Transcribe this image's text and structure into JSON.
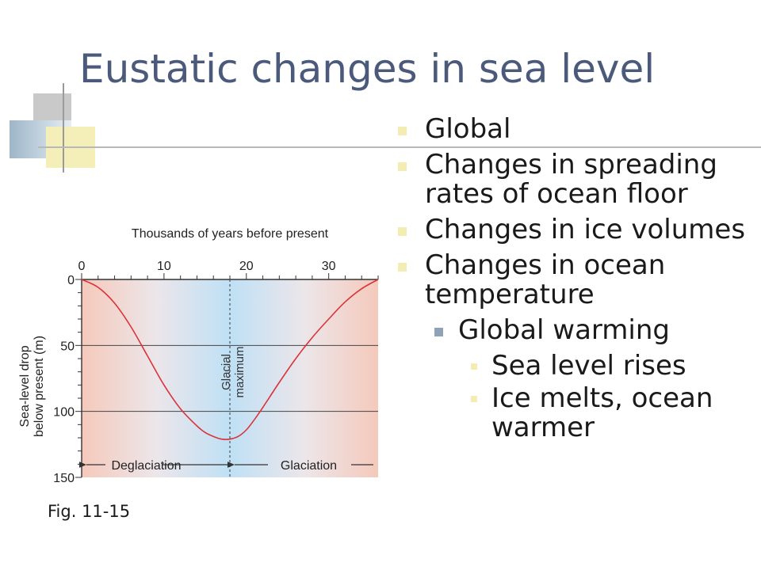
{
  "slide": {
    "title": "Eustatic changes in sea level",
    "bullets": [
      {
        "level": 1,
        "text": "Global"
      },
      {
        "level": 1,
        "text": "Changes in spreading rates of ocean floor"
      },
      {
        "level": 1,
        "text": "Changes in ice volumes"
      },
      {
        "level": 1,
        "text": "Changes in ocean temperature"
      },
      {
        "level": 2,
        "text": "Global warming"
      },
      {
        "level": 3,
        "text": "Sea level rises"
      },
      {
        "level": 3,
        "text": "Ice melts, ocean warmer"
      }
    ],
    "caption": "Fig. 11-15"
  },
  "chart_data": {
    "type": "line",
    "title": "Thousands of years before present",
    "xlabel": "",
    "ylabel_lines": [
      "Sea-level drop",
      "below present (m)"
    ],
    "xlim": [
      0,
      36
    ],
    "ylim": [
      0,
      150
    ],
    "y_inverted": true,
    "x_ticks": [
      0,
      10,
      20,
      30
    ],
    "y_ticks": [
      0,
      50,
      100,
      150
    ],
    "grid_y": [
      50,
      100
    ],
    "series": [
      {
        "color": "#d9343a",
        "x": [
          0,
          2,
          4,
          6,
          8,
          10,
          12,
          14,
          15,
          16,
          17,
          18,
          19,
          20,
          21,
          22,
          24,
          26,
          28,
          30,
          32,
          34,
          36
        ],
        "y": [
          0,
          6,
          18,
          36,
          58,
          80,
          98,
          111,
          116,
          119,
          121,
          121,
          119,
          114,
          106,
          97,
          78,
          60,
          44,
          30,
          17,
          7,
          0
        ]
      }
    ],
    "glacial_maximum_x": 18,
    "marker_label_lines": [
      "Glacial",
      "maximum"
    ],
    "bottom_labels": {
      "left": "Deglaciation",
      "right": "Glaciation"
    },
    "colors": {
      "warm": "#f5c9bb",
      "cold": "#bfe0f5",
      "curve": "#d9343a",
      "axis": "#333333"
    }
  }
}
